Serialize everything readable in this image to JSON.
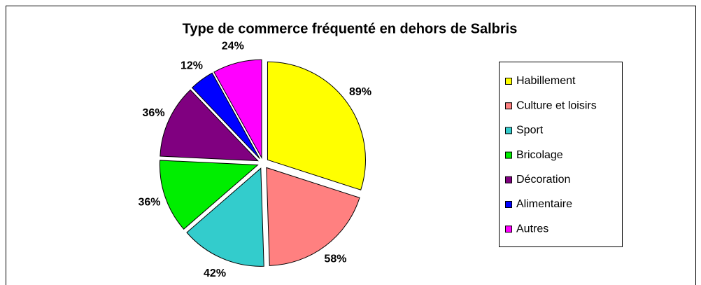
{
  "chart_data": {
    "type": "pie",
    "title": "Type de commerce fréquenté en dehors de Salbris",
    "categories": [
      "Habillement",
      "Culture et loisirs",
      "Sport",
      "Bricolage",
      "Décoration",
      "Alimentaire",
      "Autres"
    ],
    "values": [
      89,
      58,
      42,
      36,
      36,
      12,
      24
    ],
    "value_labels": [
      "89%",
      "58%",
      "42%",
      "36%",
      "36%",
      "12%",
      "24%"
    ],
    "colors": [
      "#ffff00",
      "#ff8080",
      "#33cccc",
      "#00ee00",
      "#800080",
      "#0000ff",
      "#ff00ff"
    ],
    "legend": "right"
  }
}
